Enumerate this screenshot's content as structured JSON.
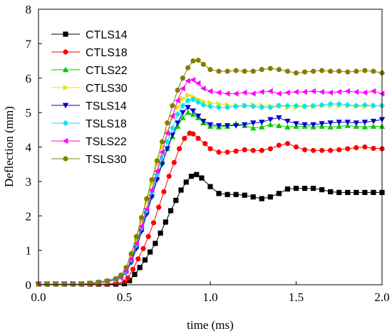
{
  "chart_data": {
    "type": "line",
    "xlabel": "time (ms)",
    "ylabel": "Deflection (mm)",
    "xlim": [
      0,
      2.0
    ],
    "ylim": [
      0,
      8
    ],
    "xticks": [
      "0.0",
      "0.5",
      "1.0",
      "1.5",
      "2.0"
    ],
    "yticks": [
      "0",
      "1",
      "2",
      "3",
      "4",
      "5",
      "6",
      "7",
      "8"
    ],
    "grid": false,
    "legend_position": "top-left",
    "series": [
      {
        "name": "CTLS14",
        "color": "#000000",
        "marker": "square",
        "x": [
          0,
          0.05,
          0.1,
          0.15,
          0.2,
          0.25,
          0.3,
          0.35,
          0.4,
          0.45,
          0.5,
          0.53,
          0.56,
          0.59,
          0.62,
          0.65,
          0.68,
          0.71,
          0.74,
          0.77,
          0.8,
          0.83,
          0.86,
          0.89,
          0.92,
          0.95,
          1.0,
          1.05,
          1.1,
          1.15,
          1.2,
          1.25,
          1.3,
          1.35,
          1.4,
          1.45,
          1.5,
          1.55,
          1.6,
          1.65,
          1.7,
          1.75,
          1.8,
          1.85,
          1.9,
          1.95,
          2.0
        ],
        "y": [
          0.02,
          0.02,
          0.02,
          0.02,
          0.02,
          0.02,
          0.02,
          0.02,
          0.02,
          0.02,
          0.03,
          0.12,
          0.3,
          0.5,
          0.72,
          0.95,
          1.2,
          1.5,
          1.82,
          2.15,
          2.45,
          2.75,
          2.98,
          3.15,
          3.2,
          3.1,
          2.85,
          2.65,
          2.62,
          2.62,
          2.6,
          2.55,
          2.5,
          2.55,
          2.65,
          2.78,
          2.8,
          2.8,
          2.8,
          2.76,
          2.7,
          2.68,
          2.68,
          2.68,
          2.68,
          2.68,
          2.68
        ]
      },
      {
        "name": "CTLS18",
        "color": "#ff0000",
        "marker": "circle",
        "x": [
          0,
          0.05,
          0.1,
          0.15,
          0.2,
          0.25,
          0.3,
          0.35,
          0.4,
          0.45,
          0.5,
          0.52,
          0.55,
          0.58,
          0.61,
          0.64,
          0.67,
          0.7,
          0.73,
          0.76,
          0.79,
          0.82,
          0.85,
          0.88,
          0.9,
          0.93,
          0.97,
          1.0,
          1.05,
          1.1,
          1.15,
          1.2,
          1.25,
          1.3,
          1.35,
          1.4,
          1.45,
          1.5,
          1.55,
          1.6,
          1.65,
          1.7,
          1.75,
          1.8,
          1.85,
          1.9,
          1.95,
          2.0
        ],
        "y": [
          0.02,
          0.02,
          0.02,
          0.02,
          0.02,
          0.02,
          0.02,
          0.02,
          0.02,
          0.04,
          0.08,
          0.2,
          0.45,
          0.75,
          1.05,
          1.4,
          1.8,
          2.25,
          2.7,
          3.15,
          3.55,
          3.95,
          4.25,
          4.4,
          4.38,
          4.25,
          4.1,
          3.95,
          3.85,
          3.85,
          3.88,
          3.92,
          3.9,
          3.9,
          3.95,
          4.05,
          4.1,
          4.0,
          3.92,
          3.9,
          3.9,
          3.9,
          3.92,
          3.95,
          3.98,
          4.0,
          3.96,
          3.95
        ]
      },
      {
        "name": "CTLS22",
        "color": "#00cc00",
        "marker": "triangle-up",
        "x": [
          0,
          0.05,
          0.1,
          0.15,
          0.2,
          0.25,
          0.3,
          0.35,
          0.4,
          0.45,
          0.48,
          0.51,
          0.54,
          0.57,
          0.6,
          0.63,
          0.66,
          0.69,
          0.72,
          0.75,
          0.78,
          0.81,
          0.84,
          0.87,
          0.9,
          0.93,
          0.96,
          1.0,
          1.05,
          1.1,
          1.15,
          1.2,
          1.25,
          1.3,
          1.35,
          1.4,
          1.45,
          1.5,
          1.55,
          1.6,
          1.65,
          1.7,
          1.75,
          1.8,
          1.85,
          1.9,
          1.95,
          2.0
        ],
        "y": [
          0.02,
          0.02,
          0.02,
          0.02,
          0.02,
          0.02,
          0.05,
          0.08,
          0.12,
          0.18,
          0.25,
          0.4,
          0.7,
          1.1,
          1.6,
          2.1,
          2.6,
          3.1,
          3.55,
          3.95,
          4.3,
          4.6,
          4.85,
          5.0,
          4.95,
          4.85,
          4.7,
          4.6,
          4.58,
          4.6,
          4.68,
          4.62,
          4.55,
          4.58,
          4.65,
          4.62,
          4.58,
          4.6,
          4.6,
          4.58,
          4.6,
          4.58,
          4.6,
          4.62,
          4.6,
          4.58,
          4.6,
          4.6
        ]
      },
      {
        "name": "CTLS30",
        "color": "#e6e600",
        "marker": "triangle-right",
        "x": [
          0,
          0.05,
          0.1,
          0.15,
          0.2,
          0.25,
          0.3,
          0.35,
          0.4,
          0.45,
          0.48,
          0.51,
          0.54,
          0.57,
          0.6,
          0.63,
          0.66,
          0.69,
          0.72,
          0.75,
          0.78,
          0.81,
          0.84,
          0.87,
          0.9,
          0.93,
          0.96,
          1.0,
          1.05,
          1.1,
          1.15,
          1.2,
          1.25,
          1.3,
          1.35,
          1.4,
          1.45,
          1.5,
          1.55,
          1.6,
          1.65,
          1.7,
          1.75,
          1.8,
          1.85,
          1.9,
          1.95,
          2.0
        ],
        "y": [
          0.02,
          0.02,
          0.02,
          0.02,
          0.02,
          0.02,
          0.04,
          0.06,
          0.1,
          0.15,
          0.22,
          0.4,
          0.8,
          1.3,
          1.85,
          2.4,
          2.95,
          3.5,
          4.0,
          4.45,
          4.85,
          5.15,
          5.4,
          5.5,
          5.45,
          5.38,
          5.32,
          5.28,
          5.25,
          5.22,
          5.2,
          5.2,
          5.22,
          5.2,
          5.18,
          5.2,
          5.15,
          5.15,
          5.18,
          5.18,
          5.2,
          5.2,
          5.2,
          5.2,
          5.18,
          5.18,
          5.2,
          5.2
        ]
      },
      {
        "name": "TSLS14",
        "color": "#0000cc",
        "marker": "triangle-down",
        "x": [
          0,
          0.05,
          0.1,
          0.15,
          0.2,
          0.25,
          0.3,
          0.35,
          0.4,
          0.45,
          0.48,
          0.51,
          0.54,
          0.57,
          0.6,
          0.63,
          0.66,
          0.69,
          0.72,
          0.75,
          0.78,
          0.81,
          0.84,
          0.87,
          0.9,
          0.93,
          0.96,
          1.0,
          1.05,
          1.1,
          1.15,
          1.2,
          1.25,
          1.3,
          1.35,
          1.4,
          1.45,
          1.5,
          1.55,
          1.6,
          1.65,
          1.7,
          1.75,
          1.8,
          1.85,
          1.9,
          1.95,
          2.0
        ],
        "y": [
          0.02,
          0.02,
          0.02,
          0.02,
          0.02,
          0.02,
          0.04,
          0.06,
          0.09,
          0.14,
          0.2,
          0.35,
          0.65,
          1.05,
          1.55,
          2.05,
          2.55,
          3.05,
          3.5,
          3.95,
          4.35,
          4.7,
          5.0,
          5.15,
          5.05,
          4.9,
          4.75,
          4.65,
          4.62,
          4.62,
          4.62,
          4.65,
          4.7,
          4.72,
          4.8,
          4.85,
          4.75,
          4.68,
          4.65,
          4.65,
          4.68,
          4.7,
          4.72,
          4.72,
          4.7,
          4.72,
          4.75,
          4.8
        ]
      },
      {
        "name": "TSLS18",
        "color": "#00e5ff",
        "marker": "diamond",
        "x": [
          0,
          0.05,
          0.1,
          0.15,
          0.2,
          0.25,
          0.3,
          0.35,
          0.4,
          0.45,
          0.48,
          0.51,
          0.54,
          0.57,
          0.6,
          0.63,
          0.66,
          0.69,
          0.72,
          0.75,
          0.78,
          0.81,
          0.84,
          0.87,
          0.9,
          0.93,
          0.96,
          1.0,
          1.05,
          1.1,
          1.15,
          1.2,
          1.25,
          1.3,
          1.35,
          1.4,
          1.45,
          1.5,
          1.55,
          1.6,
          1.65,
          1.7,
          1.75,
          1.8,
          1.85,
          1.9,
          1.95,
          2.0
        ],
        "y": [
          0.02,
          0.02,
          0.02,
          0.02,
          0.02,
          0.02,
          0.04,
          0.06,
          0.09,
          0.14,
          0.2,
          0.38,
          0.72,
          1.15,
          1.65,
          2.15,
          2.7,
          3.2,
          3.7,
          4.15,
          4.55,
          4.95,
          5.2,
          5.35,
          5.38,
          5.3,
          5.22,
          5.18,
          5.15,
          5.15,
          5.18,
          5.2,
          5.18,
          5.15,
          5.15,
          5.2,
          5.2,
          5.2,
          5.18,
          5.2,
          5.22,
          5.25,
          5.25,
          5.22,
          5.2,
          5.22,
          5.2,
          5.2
        ]
      },
      {
        "name": "TSLS22",
        "color": "#ff00ff",
        "marker": "triangle-left",
        "x": [
          0,
          0.05,
          0.1,
          0.15,
          0.2,
          0.25,
          0.3,
          0.35,
          0.4,
          0.45,
          0.48,
          0.51,
          0.54,
          0.57,
          0.6,
          0.63,
          0.66,
          0.69,
          0.72,
          0.75,
          0.78,
          0.81,
          0.84,
          0.87,
          0.9,
          0.93,
          0.96,
          1.0,
          1.05,
          1.1,
          1.15,
          1.2,
          1.25,
          1.3,
          1.35,
          1.4,
          1.45,
          1.5,
          1.55,
          1.6,
          1.65,
          1.7,
          1.75,
          1.8,
          1.85,
          1.9,
          1.95,
          2.0
        ],
        "y": [
          0.02,
          0.02,
          0.02,
          0.02,
          0.02,
          0.02,
          0.04,
          0.06,
          0.1,
          0.16,
          0.22,
          0.4,
          0.75,
          1.2,
          1.7,
          2.2,
          2.75,
          3.3,
          3.85,
          4.4,
          4.9,
          5.35,
          5.7,
          5.92,
          5.95,
          5.85,
          5.7,
          5.62,
          5.58,
          5.55,
          5.55,
          5.58,
          5.55,
          5.6,
          5.62,
          5.55,
          5.58,
          5.6,
          5.6,
          5.62,
          5.6,
          5.58,
          5.6,
          5.62,
          5.6,
          5.58,
          5.62,
          5.55
        ]
      },
      {
        "name": "TSLS30",
        "color": "#808000",
        "marker": "circle",
        "x": [
          0,
          0.05,
          0.1,
          0.15,
          0.2,
          0.25,
          0.3,
          0.35,
          0.4,
          0.45,
          0.48,
          0.51,
          0.54,
          0.57,
          0.6,
          0.63,
          0.66,
          0.69,
          0.72,
          0.75,
          0.78,
          0.81,
          0.84,
          0.87,
          0.9,
          0.93,
          0.96,
          1.0,
          1.05,
          1.1,
          1.15,
          1.2,
          1.25,
          1.3,
          1.35,
          1.4,
          1.45,
          1.5,
          1.55,
          1.6,
          1.65,
          1.7,
          1.75,
          1.8,
          1.85,
          1.9,
          1.95,
          2.0
        ],
        "y": [
          0.02,
          0.02,
          0.02,
          0.02,
          0.02,
          0.02,
          0.04,
          0.07,
          0.11,
          0.18,
          0.28,
          0.5,
          0.9,
          1.4,
          1.95,
          2.5,
          3.05,
          3.6,
          4.15,
          4.7,
          5.2,
          5.65,
          6.0,
          6.3,
          6.5,
          6.52,
          6.4,
          6.25,
          6.2,
          6.2,
          6.22,
          6.2,
          6.2,
          6.25,
          6.28,
          6.25,
          6.2,
          6.15,
          6.18,
          6.2,
          6.22,
          6.2,
          6.2,
          6.18,
          6.2,
          6.22,
          6.2,
          6.15
        ]
      }
    ]
  }
}
